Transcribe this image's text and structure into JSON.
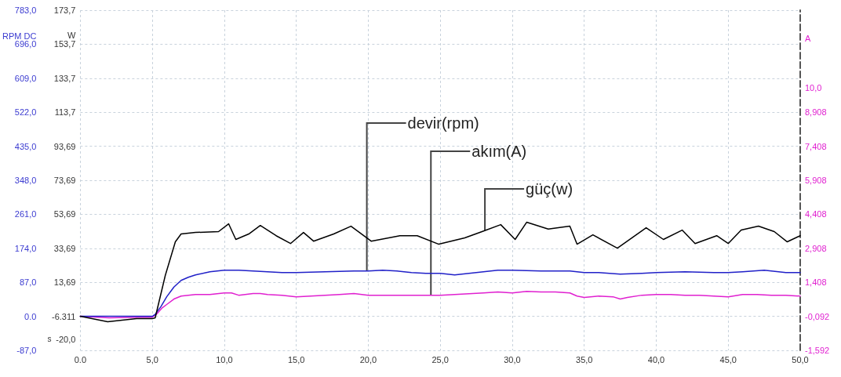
{
  "chart_data": {
    "type": "line",
    "xlabel": "s",
    "ylabel": "RPM DC",
    "y2label": "W",
    "y3label": "A",
    "xlim": [
      0,
      50
    ],
    "xticks": [
      {
        "value": 0,
        "label": "0.0"
      },
      {
        "value": 5,
        "label": "5,0"
      },
      {
        "value": 10,
        "label": "10,0"
      },
      {
        "value": 15,
        "label": "15,0"
      },
      {
        "value": 20,
        "label": "20,0"
      },
      {
        "value": 25,
        "label": "25,0"
      },
      {
        "value": 30,
        "label": "30,0"
      },
      {
        "value": 35,
        "label": "35,0"
      },
      {
        "value": 40,
        "label": "40,0"
      },
      {
        "value": 45,
        "label": "45,0"
      },
      {
        "value": 50,
        "label": "50,0"
      }
    ],
    "ylim": [
      -87,
      783
    ],
    "yticks": [
      {
        "value": -87,
        "label": "-87,0"
      },
      {
        "value": 0,
        "label": "0.0"
      },
      {
        "value": 87,
        "label": "87,0"
      },
      {
        "value": 174,
        "label": "174,0"
      },
      {
        "value": 261,
        "label": "261,0"
      },
      {
        "value": 348,
        "label": "348,0"
      },
      {
        "value": 435,
        "label": "435,0"
      },
      {
        "value": 522,
        "label": "522,0"
      },
      {
        "value": 609,
        "label": "609,0"
      },
      {
        "value": 696,
        "label": "696,0"
      },
      {
        "value": 783,
        "label": "783,0"
      }
    ],
    "y2lim": [
      -26.311,
      173.7
    ],
    "y2ticks": [
      {
        "value": -20,
        "label": "-20,0"
      },
      -6.311,
      {
        "value": 13.69,
        "label": "13,69"
      },
      {
        "value": 33.69,
        "label": "33,69"
      },
      {
        "value": 53.69,
        "label": "53,69"
      },
      {
        "value": 73.69,
        "label": "73,69"
      },
      {
        "value": 93.69,
        "label": "93,69"
      },
      {
        "value": 113.7,
        "label": "113,7"
      },
      {
        "value": 133.7,
        "label": "133,7"
      },
      {
        "value": 153.7,
        "label": "153,7"
      },
      {
        "value": 173.7,
        "label": "173,7"
      }
    ],
    "y3lim": [
      -1.592,
      13.408
    ],
    "y3ticks": [
      {
        "value": -1.592,
        "label": "-1,592"
      },
      {
        "value": -0.092,
        "label": "-0,092"
      },
      {
        "value": 1.408,
        "label": "1,408"
      },
      {
        "value": 2.908,
        "label": "2,908"
      },
      {
        "value": 4.408,
        "label": "4,408"
      },
      {
        "value": 5.908,
        "label": "5,908"
      },
      {
        "value": 7.408,
        "label": "7,408"
      },
      {
        "value": 8.908,
        "label": "8,908"
      },
      {
        "value": 10,
        "label": "10,0"
      }
    ],
    "grid": true,
    "legend": false,
    "marker": "none",
    "line_style": "solid",
    "series": [
      {
        "name": "güç(w)",
        "color": "#000000",
        "axis": "y2",
        "x": [
          0,
          1.9,
          3.9,
          5,
          5.2,
          5.9,
          6.6,
          7,
          8,
          9.6,
          10.3,
          10.8,
          11.7,
          12.5,
          13.6,
          14.6,
          15.5,
          16.2,
          17.6,
          18.8,
          20.2,
          22.2,
          23.4,
          24.9,
          26.7,
          27.9,
          29.2,
          30.2,
          31,
          32.5,
          34,
          34.5,
          35.6,
          37.3,
          39.3,
          40.5,
          41.8,
          42.7,
          44.2,
          45,
          45.9,
          47.1,
          48.2,
          49.1,
          50
        ],
        "values": [
          -6.3,
          -9.5,
          -7.7,
          -7.7,
          -7.2,
          17.7,
          37.5,
          42.1,
          43,
          43.5,
          48.1,
          38.9,
          42.1,
          47.1,
          41.1,
          36.5,
          43,
          37.9,
          42.1,
          46.7,
          37.9,
          41.1,
          41.1,
          36.1,
          39.8,
          43.5,
          47.6,
          38.9,
          49,
          45,
          46.7,
          36.1,
          41.6,
          33.8,
          45.8,
          38.9,
          44.4,
          36.5,
          41.1,
          36.5,
          44.4,
          46.7,
          43.5,
          37.5,
          41.1
        ]
      },
      {
        "name": "devir(rpm)",
        "color": "#2020c8",
        "x": [
          0,
          2,
          4,
          5,
          5.2,
          5.6,
          6,
          6.5,
          7,
          7.5,
          8,
          9,
          10,
          11,
          12,
          13,
          14,
          15,
          17,
          19,
          20,
          21,
          22,
          23,
          24,
          25,
          26,
          27,
          28,
          29,
          30,
          32,
          34,
          35,
          36,
          37.5,
          39,
          40,
          42,
          44,
          45,
          46,
          47.5,
          49,
          50
        ],
        "values": [
          0,
          0,
          0,
          0,
          5,
          25,
          50,
          75,
          92,
          100,
          106,
          114,
          118,
          118,
          116,
          114,
          112,
          112,
          114,
          116,
          116,
          118,
          116,
          112,
          110,
          110,
          106,
          110,
          114,
          118,
          118,
          116,
          116,
          112,
          112,
          108,
          110,
          112,
          114,
          112,
          112,
          114,
          118,
          112,
          112
        ]
      },
      {
        "name": "akım(A)",
        "color": "#e020d0",
        "axis": "y3",
        "x": [
          0,
          2,
          4,
          5,
          5.3,
          5.7,
          6,
          6.5,
          7,
          8,
          9,
          10,
          10.5,
          11,
          12,
          12.5,
          13,
          14,
          15,
          16,
          17,
          18,
          19,
          20,
          22,
          24,
          25,
          26,
          28,
          29,
          30,
          31,
          32,
          33,
          34,
          34.5,
          35,
          36,
          37,
          37.5,
          38,
          39,
          40,
          41,
          42,
          43,
          44,
          45,
          46,
          47,
          48,
          49,
          50
        ],
        "values": [
          -0.09,
          -0.16,
          -0.13,
          -0.13,
          0.01,
          0.29,
          0.43,
          0.67,
          0.8,
          0.87,
          0.87,
          0.94,
          0.94,
          0.84,
          0.91,
          0.91,
          0.87,
          0.84,
          0.77,
          0.8,
          0.84,
          0.87,
          0.91,
          0.84,
          0.84,
          0.84,
          0.84,
          0.87,
          0.94,
          0.98,
          0.94,
          1.01,
          0.98,
          0.98,
          0.94,
          0.8,
          0.74,
          0.8,
          0.77,
          0.67,
          0.74,
          0.84,
          0.87,
          0.87,
          0.84,
          0.84,
          0.8,
          0.77,
          0.87,
          0.87,
          0.84,
          0.84,
          0.8
        ]
      }
    ]
  }
}
